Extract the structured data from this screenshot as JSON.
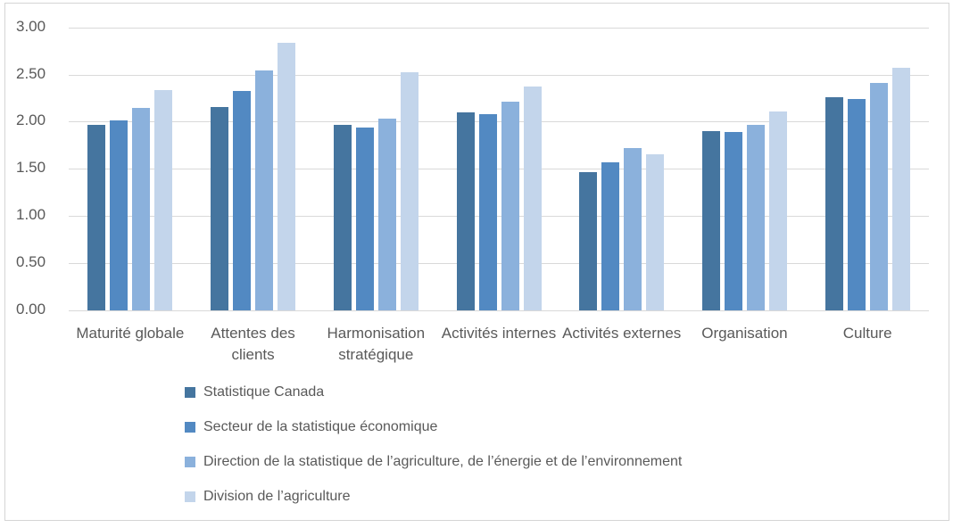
{
  "chart_data": {
    "type": "bar",
    "title": "",
    "xlabel": "",
    "ylabel": "",
    "categories": [
      "Maturité globale",
      "Attentes des clients",
      "Harmonisation stratégique",
      "Activités internes",
      "Activités externes",
      "Organisation",
      "Culture"
    ],
    "series": [
      {
        "name": "Statistique Canada",
        "color": "#45759F",
        "values": [
          1.97,
          2.16,
          1.97,
          2.1,
          1.47,
          1.9,
          2.26
        ]
      },
      {
        "name": "Secteur de la statistique économique",
        "color": "#5289C2",
        "values": [
          2.01,
          2.33,
          1.94,
          2.08,
          1.57,
          1.89,
          2.24
        ]
      },
      {
        "name": "Direction de la statistique de l’agriculture, de l’énergie et de l’environnement",
        "color": "#8BB1DC",
        "values": [
          2.15,
          2.54,
          2.03,
          2.21,
          1.72,
          1.97,
          2.41
        ]
      },
      {
        "name": "Division de l’agriculture",
        "color": "#C3D5EB",
        "values": [
          2.34,
          2.84,
          2.52,
          2.37,
          1.65,
          2.11,
          2.57
        ]
      }
    ],
    "y_axis": {
      "tick_labels": [
        "0.00",
        "0.50",
        "1.00",
        "1.50",
        "2.00",
        "2.50",
        "3.00"
      ],
      "min": 0,
      "max": 3,
      "step": 0.5
    },
    "grid": true,
    "legend_position": "bottom-left"
  },
  "colors": {
    "text": "#595959",
    "gridline": "#D9D9D9",
    "frame_border": "#D5D5D5",
    "background": "#FFFFFF"
  }
}
